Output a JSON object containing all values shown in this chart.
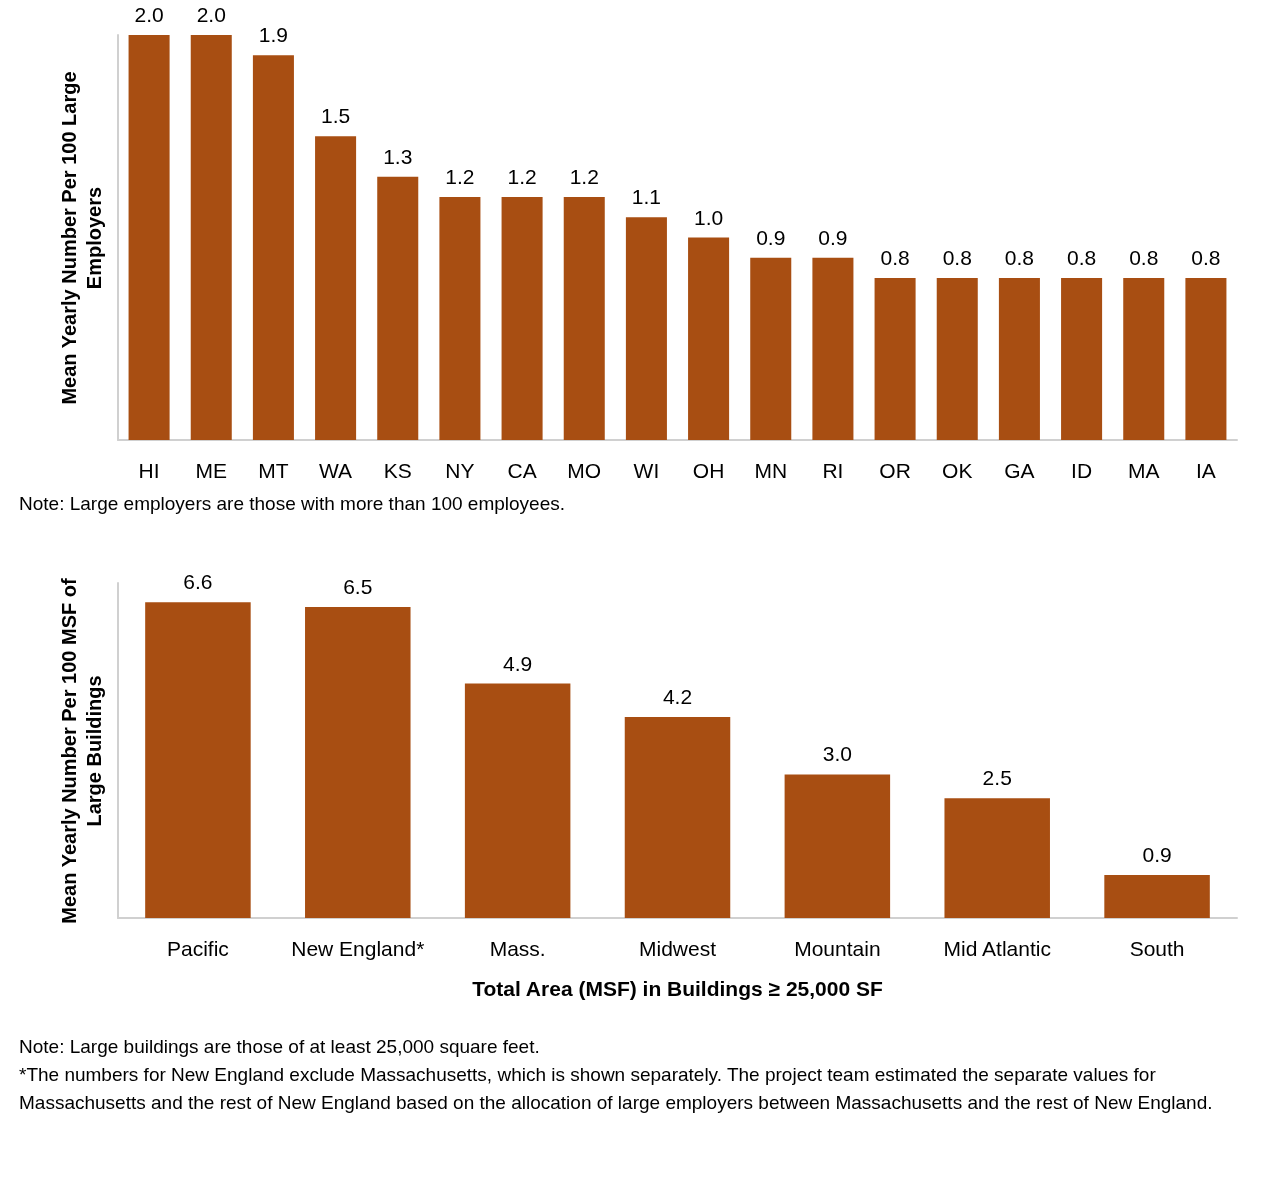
{
  "chart_data": [
    {
      "type": "bar",
      "ylabel": "Mean Yearly Number Per 100 Large Employers",
      "categories": [
        "HI",
        "ME",
        "MT",
        "WA",
        "KS",
        "NY",
        "CA",
        "MO",
        "WI",
        "OH",
        "MN",
        "RI",
        "OR",
        "OK",
        "GA",
        "ID",
        "MA",
        "IA"
      ],
      "values": [
        2.0,
        2.0,
        1.9,
        1.5,
        1.3,
        1.2,
        1.2,
        1.2,
        1.1,
        1.0,
        0.9,
        0.9,
        0.8,
        0.8,
        0.8,
        0.8,
        0.8,
        0.8
      ],
      "value_labels": [
        "2.0",
        "2.0",
        "1.9",
        "1.5",
        "1.3",
        "1.2",
        "1.2",
        "1.2",
        "1.1",
        "1.0",
        "0.9",
        "0.9",
        "0.8",
        "0.8",
        "0.8",
        "0.8",
        "0.8",
        "0.8"
      ],
      "color": "#a84e12",
      "grid": false,
      "annotations": [
        "Note: Large employers are those with more than 100 employees."
      ]
    },
    {
      "type": "bar",
      "ylabel": "Mean Yearly Number Per 100 MSF of Large Buildings",
      "xlabel": "Total Area (MSF) in Buildings ≥ 25,000 SF",
      "categories": [
        "Pacific",
        "New England*",
        "Mass.",
        "Midwest",
        "Mountain",
        "Mid Atlantic",
        "South"
      ],
      "values": [
        6.6,
        6.5,
        4.9,
        4.2,
        3.0,
        2.5,
        0.9
      ],
      "value_labels": [
        "6.6",
        "6.5",
        "4.9",
        "4.2",
        "3.0",
        "2.5",
        "0.9"
      ],
      "color": "#a84e12",
      "grid": false,
      "annotations": [
        "Note: Large buildings are those of at least 25,000 square feet.",
        "*The numbers for New England exclude Massachusetts, which is shown separately. The project team estimated the separate values for Massachusetts and the rest of New England based on the allocation of large employers between Massachusetts and the rest of New England."
      ]
    }
  ]
}
